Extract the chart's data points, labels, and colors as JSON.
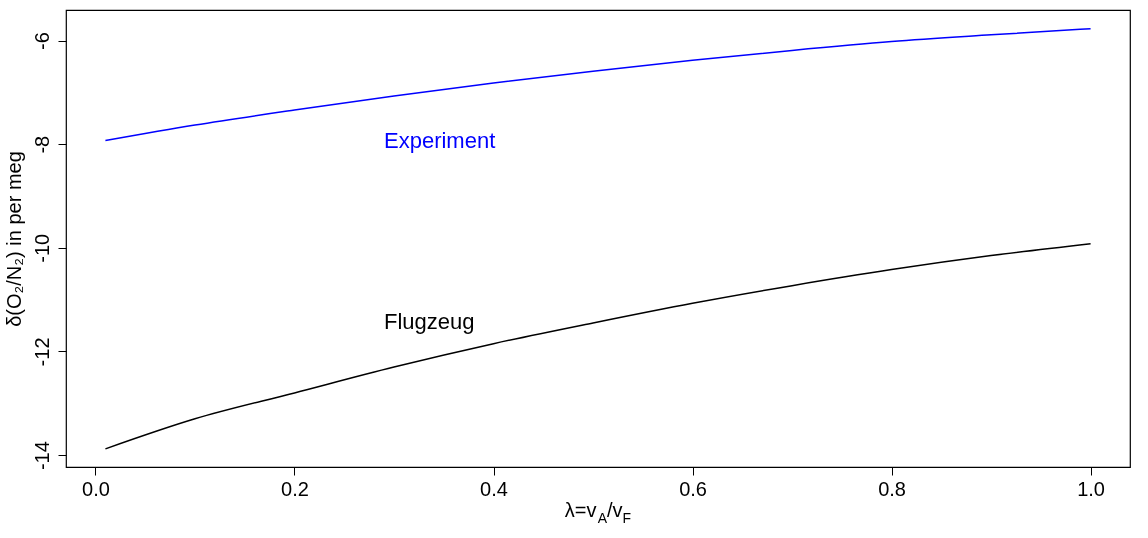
{
  "chart_data": {
    "type": "line",
    "xlabel": "λ=v$_{A}$/v$_{F}$",
    "ylabel": "δ(O₂/N₂) in per meg",
    "x": [
      0.01,
      0.1,
      0.2,
      0.3,
      0.4,
      0.5,
      0.6,
      0.7,
      0.8,
      0.9,
      1.0
    ],
    "series": [
      {
        "name": "Experiment",
        "color": "#0000ff",
        "values": [
          -7.93,
          -7.63,
          -7.34,
          -7.07,
          -6.82,
          -6.59,
          -6.38,
          -6.19,
          -6.02,
          -5.89,
          -5.77
        ]
      },
      {
        "name": "Flugzeug",
        "color": "#000000",
        "values": [
          -13.88,
          -13.3,
          -12.8,
          -12.3,
          -11.85,
          -11.45,
          -11.07,
          -10.73,
          -10.42,
          -10.15,
          -9.92
        ]
      }
    ],
    "xlim": [
      -0.0296,
      1.0396
    ],
    "ylim": [
      -14.23,
      -5.41
    ],
    "xticks": [
      {
        "value": 0,
        "label": "0.0"
      },
      0.2,
      0.4,
      0.6,
      0.8,
      {
        "value": 1,
        "label": "1.0"
      }
    ],
    "yticks": [
      -14,
      -12,
      -10,
      -8,
      -6
    ],
    "grid": false,
    "marker": "none",
    "line_style": "solid"
  }
}
